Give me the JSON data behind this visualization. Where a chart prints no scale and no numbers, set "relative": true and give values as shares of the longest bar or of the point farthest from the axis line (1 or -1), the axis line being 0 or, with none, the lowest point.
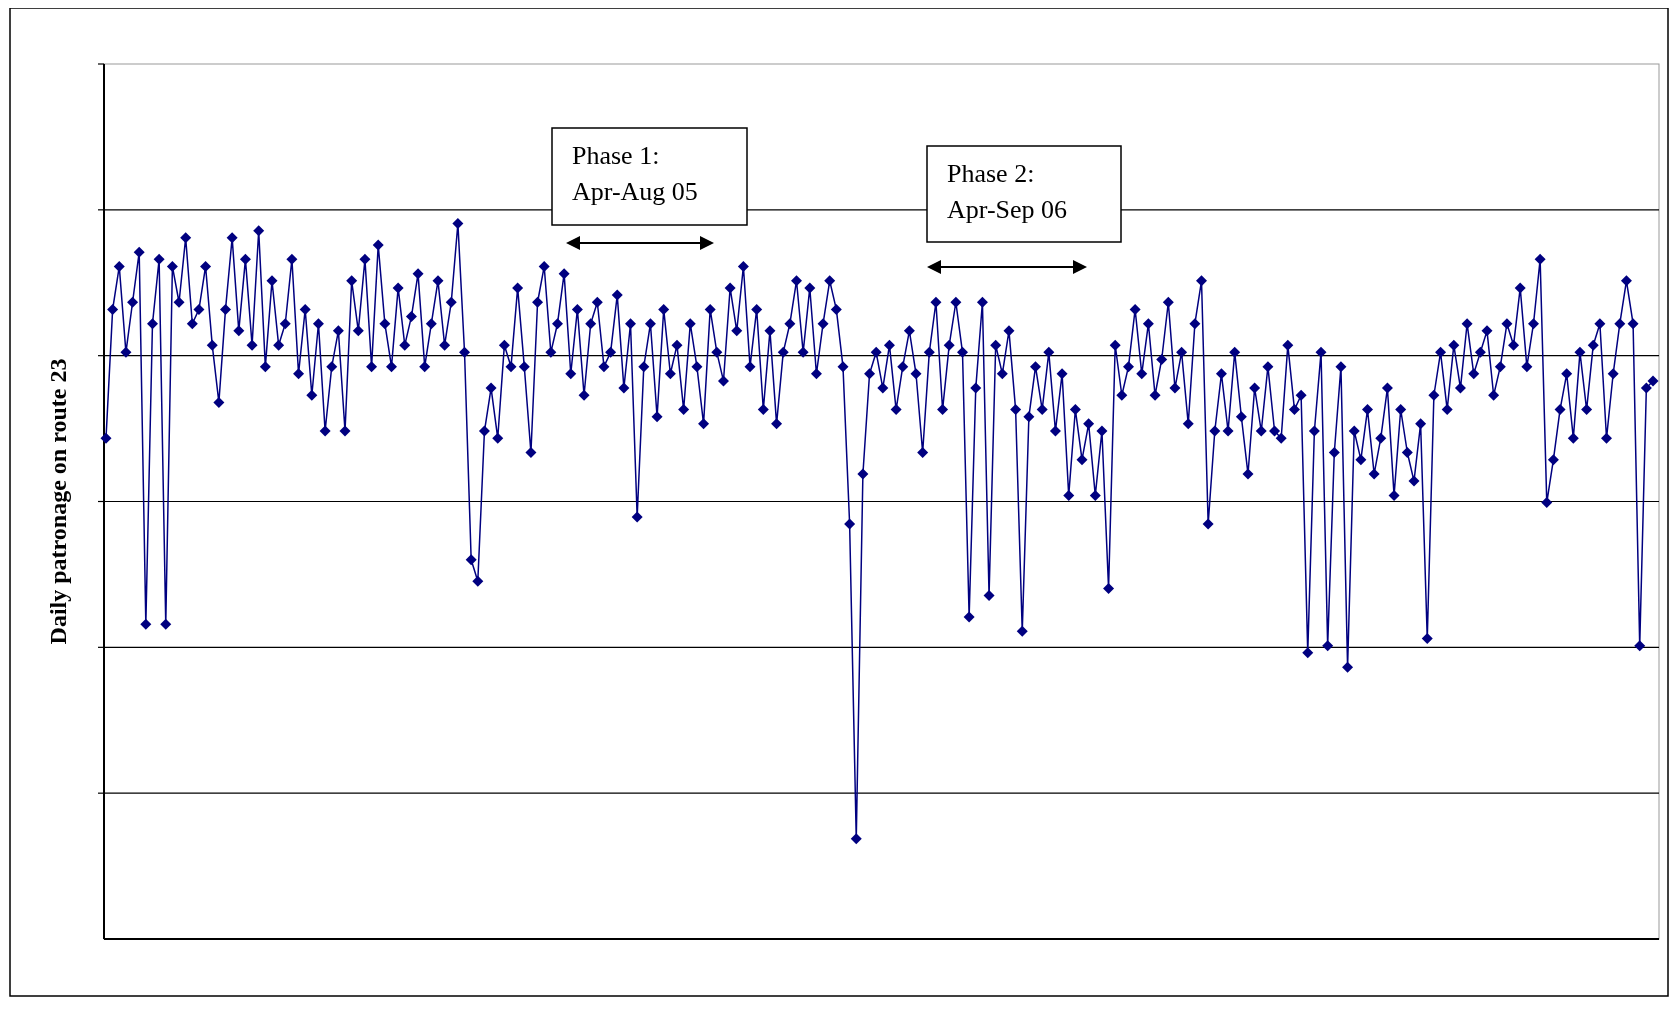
{
  "chart_data": {
    "type": "line",
    "ylabel": "Daily patronage on route 23",
    "relative": true,
    "grid": true,
    "marker": "diamond",
    "line_style": "solid",
    "annotations": [
      "Phase 1:\nApr-Aug 05",
      "Phase 2:\nApr-Sep 06"
    ],
    "categories": [
      null,
      null,
      null,
      null,
      null,
      null,
      null,
      null,
      null,
      null,
      null,
      null,
      null,
      null,
      null,
      null,
      null,
      null,
      null,
      null,
      null,
      null,
      null,
      null,
      null,
      null,
      null,
      null,
      null,
      null,
      null,
      null,
      null,
      null,
      null,
      null,
      null,
      null,
      null,
      null,
      null,
      null,
      null,
      null,
      null,
      null,
      null,
      null,
      null,
      null,
      null,
      null,
      null,
      null,
      null,
      null,
      null,
      null,
      null,
      null,
      null,
      null,
      null,
      null,
      null,
      null,
      null,
      null,
      null,
      null,
      null,
      null,
      null,
      null,
      null,
      null,
      null,
      null,
      null,
      null,
      null,
      null,
      null,
      null,
      null,
      null,
      null,
      null,
      null,
      null,
      null,
      null,
      null,
      null,
      null,
      null,
      null,
      null,
      null,
      null,
      null,
      null,
      null,
      null,
      null,
      null,
      null,
      null,
      null,
      null,
      null,
      null,
      null,
      null,
      null,
      null,
      null,
      null,
      null,
      null,
      null,
      null,
      null,
      null,
      null,
      null,
      null,
      null,
      null,
      null,
      null,
      null,
      null,
      null,
      null,
      null,
      null,
      null,
      null,
      null,
      null,
      null,
      null,
      null,
      null,
      null,
      null,
      null,
      null,
      null,
      null,
      null,
      null,
      null,
      null,
      null,
      null,
      null,
      null,
      null,
      null,
      null,
      null,
      null,
      null,
      null,
      null,
      null,
      null,
      null,
      null,
      null,
      null,
      null,
      null,
      null,
      null,
      null,
      null,
      null,
      null,
      null,
      null,
      null,
      null,
      null,
      null,
      null,
      null,
      null,
      null,
      null,
      null,
      null,
      null,
      null,
      null,
      null,
      null,
      null,
      null,
      null,
      null,
      null,
      null,
      null,
      null,
      null,
      null,
      null,
      null,
      null,
      null,
      null,
      null,
      null,
      null,
      null,
      null,
      null,
      null,
      null,
      null,
      null,
      null,
      null,
      null,
      null,
      null,
      null,
      null,
      null,
      null,
      null
    ],
    "series": [
      {
        "color": "#000080",
        "values": [
          0.7,
          0.88,
          0.94,
          0.82,
          0.89,
          0.96,
          0.44,
          0.86,
          0.95,
          0.44,
          0.94,
          0.89,
          0.98,
          0.86,
          0.88,
          0.94,
          0.83,
          0.75,
          0.88,
          0.98,
          0.85,
          0.95,
          0.83,
          0.99,
          0.8,
          0.92,
          0.83,
          0.86,
          0.95,
          0.79,
          0.88,
          0.76,
          0.86,
          0.71,
          0.8,
          0.85,
          0.71,
          0.92,
          0.85,
          0.95,
          0.8,
          0.97,
          0.86,
          0.8,
          0.91,
          0.83,
          0.87,
          0.93,
          0.8,
          0.86,
          0.92,
          0.83,
          0.89,
          1,
          0.82,
          0.53,
          0.5,
          0.71,
          0.77,
          0.7,
          0.83,
          0.8,
          0.91,
          0.8,
          0.68,
          0.89,
          0.94,
          0.82,
          0.86,
          0.93,
          0.79,
          0.88,
          0.76,
          0.86,
          0.89,
          0.8,
          0.82,
          0.9,
          0.77,
          0.86,
          0.59,
          0.8,
          0.86,
          0.73,
          0.88,
          0.79,
          0.83,
          0.74,
          0.86,
          0.8,
          0.72,
          0.88,
          0.82,
          0.78,
          0.91,
          0.85,
          0.94,
          0.8,
          0.88,
          0.74,
          0.85,
          0.72,
          0.82,
          0.86,
          0.92,
          0.82,
          0.91,
          0.79,
          0.86,
          0.92,
          0.88,
          0.8,
          0.58,
          0.14,
          0.65,
          0.79,
          0.82,
          0.77,
          0.83,
          0.74,
          0.8,
          0.85,
          0.79,
          0.68,
          0.82,
          0.89,
          0.74,
          0.83,
          0.89,
          0.82,
          0.45,
          0.77,
          0.89,
          0.48,
          0.83,
          0.79,
          0.85,
          0.74,
          0.43,
          0.73,
          0.8,
          0.74,
          0.82,
          0.71,
          0.79,
          0.62,
          0.74,
          0.67,
          0.72,
          0.62,
          0.71,
          0.49,
          0.83,
          0.76,
          0.8,
          0.88,
          0.79,
          0.86,
          0.76,
          0.81,
          0.89,
          0.77,
          0.82,
          0.72,
          0.86,
          0.92,
          0.58,
          0.71,
          0.79,
          0.71,
          0.82,
          0.73,
          0.65,
          0.77,
          0.71,
          0.8,
          0.71,
          0.7,
          0.83,
          0.74,
          0.76,
          0.4,
          0.71,
          0.82,
          0.41,
          0.68,
          0.8,
          0.38,
          0.71,
          0.67,
          0.74,
          0.65,
          0.7,
          0.77,
          0.62,
          0.74,
          0.68,
          0.64,
          0.72,
          0.42,
          0.76,
          0.82,
          0.74,
          0.83,
          0.77,
          0.86,
          0.79,
          0.82,
          0.85,
          0.76,
          0.8,
          0.86,
          0.83,
          0.91,
          0.8,
          0.86,
          0.95,
          0.61,
          0.67,
          0.74,
          0.79,
          0.7,
          0.82,
          0.74,
          0.83,
          0.86,
          0.7,
          0.79,
          0.86,
          0.92,
          0.86,
          0.41,
          0.77,
          0.78
        ]
      }
    ]
  }
}
